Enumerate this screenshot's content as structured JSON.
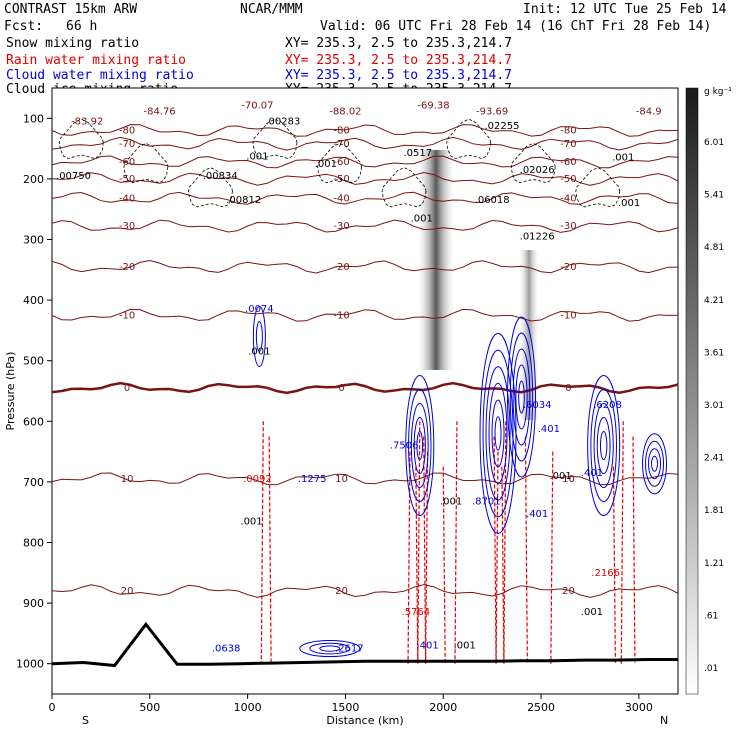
{
  "header": {
    "model": "CONTRAST 15km ARW",
    "org": "NCAR/MMM",
    "init": "Init: 12 UTC Tue 25 Feb 14",
    "fcst_label": "Fcst:",
    "fcst_value": "66 h",
    "valid": "Valid: 06 UTC Fri 28 Feb 14 (16 ChT Fri 28 Feb 14)"
  },
  "fields": [
    {
      "name": "Snow mixing ratio",
      "color": "#000000",
      "xy": "XY= 235.3,  2.5 to 235.3,214.7"
    },
    {
      "name": "Rain water mixing ratio",
      "color": "#e00000",
      "xy": "XY= 235.3,  2.5 to 235.3,214.7"
    },
    {
      "name": "Cloud water mixing ratio",
      "color": "#0000dd",
      "xy": "XY= 235.3,  2.5 to 235.3,214.7"
    },
    {
      "name": "Cloud ice mixing ratio",
      "color": "#000000",
      "xy": "XY= 235.3,  2.5 to 235.3,214.7"
    }
  ],
  "chart_data": {
    "type": "heatmap",
    "xlabel": "Distance (km)",
    "ylabel": "Pressure (hPa)",
    "xlim": [
      0,
      3200
    ],
    "ylim": [
      1050,
      50
    ],
    "xticks": [
      "0",
      "500",
      "1000",
      "1500",
      "2000",
      "2500",
      "3000"
    ],
    "yticks": [
      "100",
      "200",
      "300",
      "400",
      "500",
      "600",
      "700",
      "800",
      "900",
      "1000"
    ],
    "end_labels": {
      "left": "S",
      "right": "N"
    },
    "colorbar": {
      "unit": "g kg⁻¹",
      "levels": [
        "6.01",
        "5.41",
        "4.81",
        "4.21",
        "3.61",
        "3.01",
        "2.41",
        "1.81",
        "1.21",
        ".61",
        ".01"
      ]
    },
    "terrain_p": [
      1000,
      998,
      1003,
      1002,
      1001,
      1001,
      1000,
      999,
      998,
      997,
      996,
      996,
      996,
      996,
      996,
      995,
      995,
      994,
      994,
      993,
      993
    ],
    "terrain_peak": {
      "x": 440,
      "p": 935
    },
    "isotherms": [
      {
        "label": "-80",
        "p": 120
      },
      {
        "label": "-70",
        "p": 142
      },
      {
        "label": "-60",
        "p": 172
      },
      {
        "label": "-50",
        "p": 200
      },
      {
        "label": "-40",
        "p": 232
      },
      {
        "label": "-30",
        "p": 278
      },
      {
        "label": "-20",
        "p": 345
      },
      {
        "label": "-10",
        "p": 425
      },
      {
        "label": "0",
        "p": 545
      },
      {
        "label": "10",
        "p": 695
      },
      {
        "label": "20",
        "p": 880
      }
    ],
    "labels": [
      {
        "text": "-70.07",
        "x": 1050,
        "p": 84
      },
      {
        "text": "-88.02",
        "x": 1500,
        "p": 94
      },
      {
        "text": "-69.38",
        "x": 1950,
        "p": 84
      },
      {
        "text": "-93.69",
        "x": 2250,
        "p": 94
      },
      {
        "text": "-84.76",
        "x": 550,
        "p": 94
      },
      {
        "text": "-83.92",
        "x": 180,
        "p": 110
      },
      {
        "text": "-84.9",
        "x": 3050,
        "p": 94
      },
      {
        "text": ".00283",
        "x": 1180,
        "p": 110
      },
      {
        "text": ".02255",
        "x": 2300,
        "p": 118
      },
      {
        "text": ".0517",
        "x": 1870,
        "p": 162
      },
      {
        "text": ".001",
        "x": 1400,
        "p": 180
      },
      {
        "text": ".001",
        "x": 1050,
        "p": 168
      },
      {
        "text": ".02026",
        "x": 2480,
        "p": 190
      },
      {
        "text": ".001",
        "x": 2920,
        "p": 170
      },
      {
        "text": ".00750",
        "x": 110,
        "p": 200
      },
      {
        "text": ".00834",
        "x": 860,
        "p": 200
      },
      {
        "text": ".00812",
        "x": 980,
        "p": 240
      },
      {
        "text": ".06018",
        "x": 2250,
        "p": 240
      },
      {
        "text": ".001",
        "x": 2950,
        "p": 245
      },
      {
        "text": ".001",
        "x": 1890,
        "p": 270
      },
      {
        "text": ".01226",
        "x": 2480,
        "p": 300
      },
      {
        "text": ".0074",
        "x": 1060,
        "p": 420
      },
      {
        "text": ".001",
        "x": 1060,
        "p": 490
      },
      {
        "text": ".7506",
        "x": 1800,
        "p": 645
      },
      {
        "text": ".6034",
        "x": 2480,
        "p": 578
      },
      {
        "text": ".401",
        "x": 2540,
        "p": 618
      },
      {
        "text": ".6208",
        "x": 2840,
        "p": 578
      },
      {
        "text": ".0092",
        "x": 1050,
        "p": 700
      },
      {
        "text": ".1275",
        "x": 1330,
        "p": 700
      },
      {
        "text": ".001",
        "x": 1020,
        "p": 770
      },
      {
        "text": ".001",
        "x": 2040,
        "p": 737
      },
      {
        "text": ".8701",
        "x": 2220,
        "p": 737
      },
      {
        "text": ".401",
        "x": 2760,
        "p": 690
      },
      {
        "text": ".001",
        "x": 2600,
        "p": 695
      },
      {
        "text": ".401",
        "x": 2480,
        "p": 758
      },
      {
        "text": ".2166",
        "x": 2830,
        "p": 855
      },
      {
        "text": ".5764",
        "x": 1860,
        "p": 920
      },
      {
        "text": ".001",
        "x": 2760,
        "p": 920
      },
      {
        "text": ".0638",
        "x": 890,
        "p": 980
      },
      {
        "text": ".2617",
        "x": 1520,
        "p": 980
      },
      {
        "text": ".401",
        "x": 1920,
        "p": 975
      },
      {
        "text": ".001",
        "x": 2110,
        "p": 975
      }
    ]
  }
}
